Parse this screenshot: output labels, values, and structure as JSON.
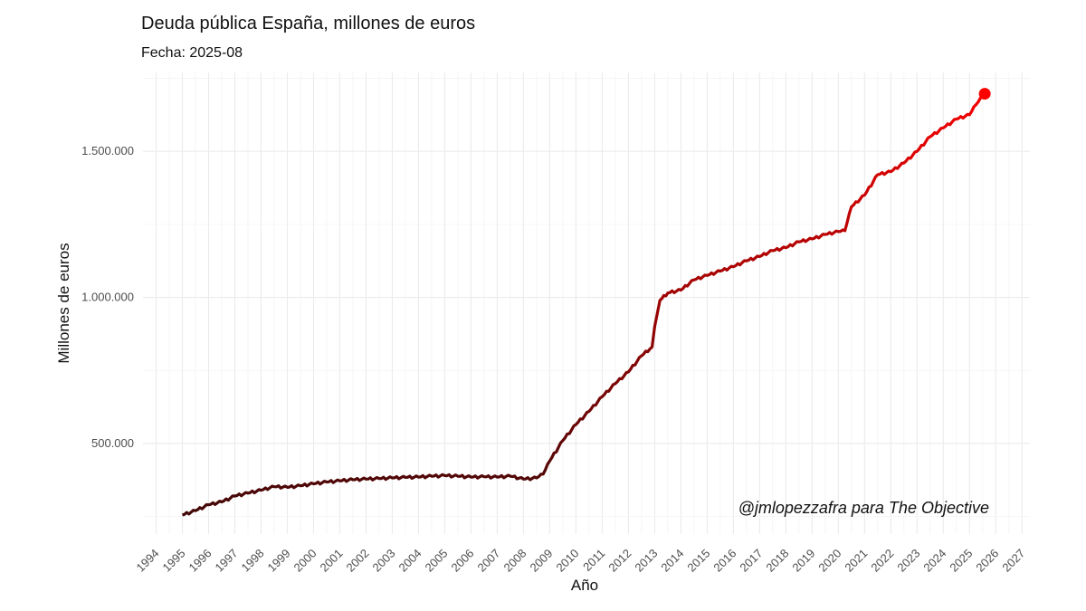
{
  "chart_data": {
    "type": "line",
    "title": "Deuda pública España, millones de euros",
    "subtitle": "Fecha: 2025-08",
    "xlabel": "Año",
    "ylabel": "Millones de euros",
    "annotation": "@jmlopezzafra para The Objective",
    "xlim": [
      1993.5,
      2027.3
    ],
    "ylim": [
      190000,
      1770000
    ],
    "x_ticks": [
      "1994",
      "1995",
      "1996",
      "1997",
      "1998",
      "1999",
      "2000",
      "2001",
      "2002",
      "2003",
      "2004",
      "2005",
      "2006",
      "2007",
      "2008",
      "2009",
      "2010",
      "2011",
      "2012",
      "2013",
      "2014",
      "2015",
      "2016",
      "2017",
      "2018",
      "2019",
      "2020",
      "2021",
      "2022",
      "2023",
      "2024",
      "2025",
      "2026",
      "2027"
    ],
    "y_ticks": [
      {
        "value": 500000,
        "label": "500.000"
      },
      {
        "value": 1000000,
        "label": "1.000.000"
      },
      {
        "value": 1500000,
        "label": "1.500.000"
      }
    ],
    "grid": true,
    "legend": "none",
    "color_low": "#3a0808",
    "color_high": "#ff0000",
    "last_point": {
      "date": "2025-08",
      "value": 1697000
    },
    "x": [
      1995.0,
      1995.5,
      1996.0,
      1996.5,
      1997.0,
      1997.5,
      1998.0,
      1998.5,
      1999.0,
      1999.5,
      2000.0,
      2000.5,
      2001.0,
      2001.5,
      2002.0,
      2002.5,
      2003.0,
      2003.5,
      2004.0,
      2004.5,
      2005.0,
      2005.5,
      2006.0,
      2006.5,
      2007.0,
      2007.5,
      2008.0,
      2008.5,
      2008.75,
      2009.0,
      2009.5,
      2010.0,
      2010.5,
      2011.0,
      2011.5,
      2012.0,
      2012.5,
      2012.9,
      2013.0,
      2013.2,
      2013.5,
      2014.0,
      2014.5,
      2015.0,
      2015.5,
      2016.0,
      2016.5,
      2017.0,
      2017.5,
      2018.0,
      2018.5,
      2019.0,
      2019.5,
      2020.0,
      2020.25,
      2020.5,
      2021.0,
      2021.5,
      2022.0,
      2022.5,
      2023.0,
      2023.5,
      2024.0,
      2024.5,
      2025.0,
      2025.25,
      2025.58
    ],
    "values": [
      255000,
      270000,
      290000,
      300000,
      320000,
      330000,
      340000,
      352000,
      350000,
      355000,
      362000,
      368000,
      372000,
      376000,
      378000,
      380000,
      382000,
      384000,
      385000,
      388000,
      390000,
      388000,
      385000,
      386000,
      385000,
      388000,
      378000,
      382000,
      395000,
      440000,
      510000,
      565000,
      610000,
      660000,
      705000,
      745000,
      800000,
      830000,
      900000,
      990000,
      1015000,
      1025000,
      1060000,
      1075000,
      1090000,
      1105000,
      1125000,
      1140000,
      1160000,
      1170000,
      1190000,
      1200000,
      1215000,
      1225000,
      1228000,
      1310000,
      1350000,
      1420000,
      1430000,
      1460000,
      1500000,
      1550000,
      1580000,
      1610000,
      1625000,
      1660000,
      1697000
    ]
  }
}
